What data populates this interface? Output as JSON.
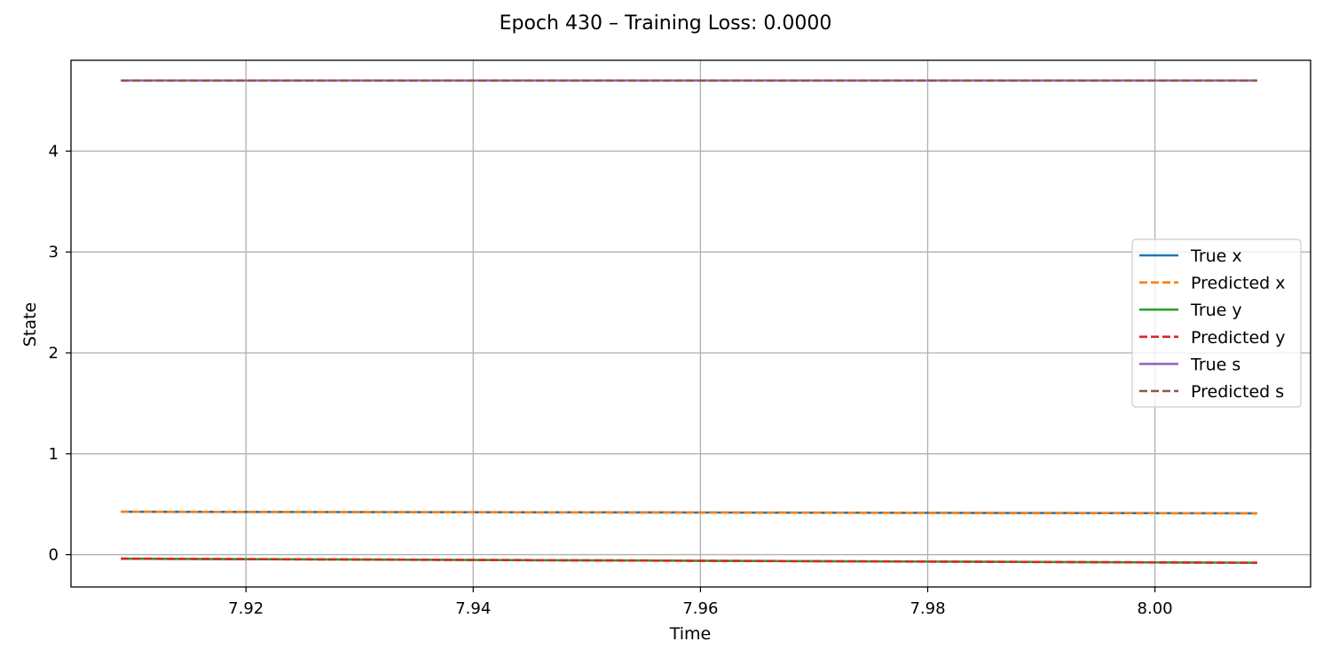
{
  "chart_data": {
    "type": "line",
    "title": "Epoch 430 – Training Loss: 0.0000",
    "xlabel": "Time",
    "ylabel": "State",
    "xlim": [
      7.9046,
      8.0137
    ],
    "ylim": [
      -0.32,
      4.9
    ],
    "xticks": [
      7.92,
      7.94,
      7.96,
      7.98,
      8.0
    ],
    "xtick_labels": [
      "7.92",
      "7.94",
      "7.96",
      "7.98",
      "8.00"
    ],
    "yticks": [
      0,
      1,
      2,
      3,
      4
    ],
    "ytick_labels": [
      "0",
      "1",
      "2",
      "3",
      "4"
    ],
    "grid": true,
    "legend_position": "center-right",
    "series": [
      {
        "name": "True x",
        "color": "#1f77b4",
        "dash": "solid",
        "x": [
          7.909,
          7.959,
          8.009
        ],
        "y": [
          0.425,
          0.418,
          0.41
        ]
      },
      {
        "name": "Predicted x",
        "color": "#ff7f0e",
        "dash": "dashed",
        "x": [
          7.909,
          7.959,
          8.009
        ],
        "y": [
          0.425,
          0.418,
          0.41
        ]
      },
      {
        "name": "True y",
        "color": "#2ca02c",
        "dash": "solid",
        "x": [
          7.909,
          7.959,
          8.009
        ],
        "y": [
          -0.04,
          -0.06,
          -0.08
        ]
      },
      {
        "name": "Predicted y",
        "color": "#d62728",
        "dash": "dashed",
        "x": [
          7.909,
          7.959,
          8.009
        ],
        "y": [
          -0.04,
          -0.06,
          -0.08
        ]
      },
      {
        "name": "True s",
        "color": "#9467bd",
        "dash": "solid",
        "x": [
          7.909,
          7.959,
          8.009
        ],
        "y": [
          4.7,
          4.7,
          4.7
        ]
      },
      {
        "name": "Predicted s",
        "color": "#8c564b",
        "dash": "dashed",
        "x": [
          7.909,
          7.959,
          8.009
        ],
        "y": [
          4.7,
          4.7,
          4.7
        ]
      }
    ]
  }
}
